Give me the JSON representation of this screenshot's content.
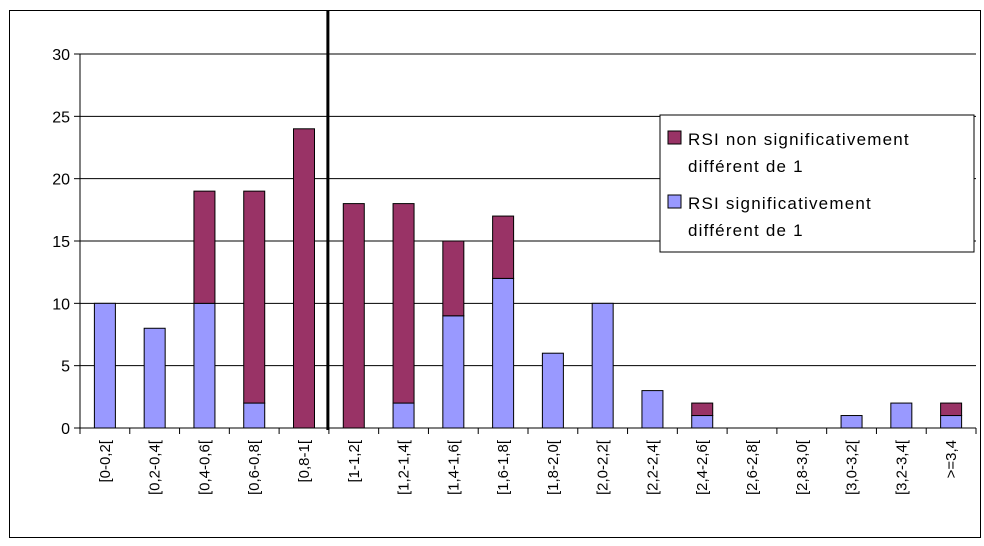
{
  "chart_data": {
    "type": "bar",
    "stacked": true,
    "categories": [
      "[0-0,2[",
      "[0,2-0,4[",
      "[0,4-0,6[",
      "[0,6-0,8[",
      "[0,8-1[",
      "[1-1,2[",
      "[1,2-1,4[",
      "[1,4-1,6[",
      "[1,6-1,8[",
      "[1,8-2,0[",
      "[2,0-2,2[",
      "[2,2-2,4[",
      "[2,4-2,6[",
      "[2,6-2,8[",
      "[2,8-3,0[",
      "[3,0-3,2[",
      "[3,2-3,4[",
      ">=3,4"
    ],
    "series": [
      {
        "name": "RSI significativement différent de 1",
        "color": "#9999ff",
        "values": [
          10,
          8,
          10,
          2,
          0,
          0,
          2,
          9,
          12,
          6,
          10,
          3,
          1,
          0,
          0,
          1,
          2,
          1
        ]
      },
      {
        "name": "RSI non significativement différent de 1",
        "color": "#993366",
        "values": [
          0,
          0,
          9,
          17,
          24,
          18,
          16,
          6,
          5,
          0,
          0,
          0,
          1,
          0,
          0,
          0,
          0,
          1
        ]
      }
    ],
    "ylim": [
      0,
      30
    ],
    "yticks": [
      0,
      5,
      10,
      15,
      20,
      25,
      30
    ],
    "grid": true,
    "legend": {
      "placement": "right",
      "entries": [
        {
          "lines": [
            "RSI non significativement",
            "différent de 1"
          ],
          "color": "#993366"
        },
        {
          "lines": [
            "RSI significativement",
            "différent de 1"
          ],
          "color": "#9999ff"
        }
      ]
    },
    "reference_line_at": 1
  }
}
